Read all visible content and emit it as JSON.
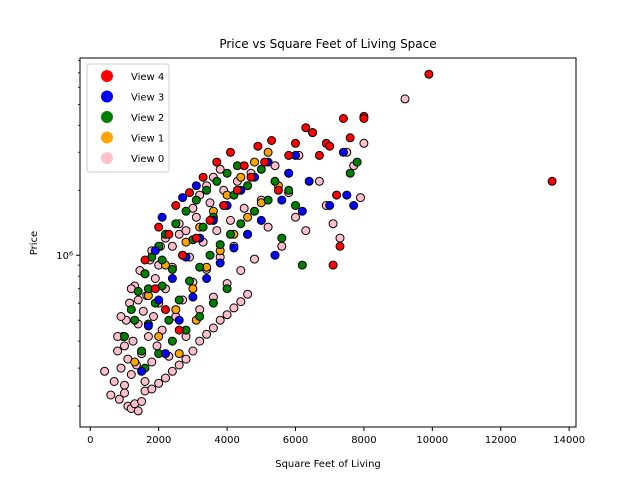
{
  "chart_data": {
    "type": "scatter",
    "title": "Price vs Square Feet of Living Space",
    "xlabel": "Square Feet of Living",
    "ylabel": "Price",
    "y_scale": "log",
    "xlim": [
      -300,
      14200
    ],
    "ylim": [
      160000,
      8200000
    ],
    "x_ticks": [
      0,
      2000,
      4000,
      6000,
      8000,
      10000,
      12000,
      14000
    ],
    "x_tick_labels": [
      "0",
      "2000",
      "4000",
      "6000",
      "8000",
      "10000",
      "12000",
      "14000"
    ],
    "y_ticks": [
      1000000
    ],
    "y_tick_labels": [
      "10⁶"
    ],
    "grid": false,
    "legend_position": "upper-left",
    "series": [
      {
        "name": "View 0",
        "color": "#ffc0cb",
        "points": [
          [
            420,
            290000
          ],
          [
            600,
            225000
          ],
          [
            700,
            260000
          ],
          [
            800,
            360000
          ],
          [
            850,
            215000
          ],
          [
            900,
            300000
          ],
          [
            950,
            420000
          ],
          [
            1000,
            250000
          ],
          [
            1050,
            500000
          ],
          [
            1100,
            330000
          ],
          [
            1150,
            600000
          ],
          [
            1200,
            280000
          ],
          [
            1250,
            400000
          ],
          [
            1300,
            720000
          ],
          [
            1350,
            310000
          ],
          [
            1400,
            480000
          ],
          [
            1450,
            850000
          ],
          [
            1500,
            350000
          ],
          [
            1550,
            550000
          ],
          [
            1600,
            260000
          ],
          [
            1650,
            650000
          ],
          [
            1700,
            420000
          ],
          [
            1750,
            950000
          ],
          [
            1800,
            320000
          ],
          [
            1850,
            520000
          ],
          [
            1900,
            780000
          ],
          [
            1950,
            380000
          ],
          [
            2000,
            600000
          ],
          [
            2050,
            1100000
          ],
          [
            2100,
            450000
          ],
          [
            2200,
            700000
          ],
          [
            2300,
            340000
          ],
          [
            2400,
            880000
          ],
          [
            2500,
            520000
          ],
          [
            2600,
            1250000
          ],
          [
            2700,
            620000
          ],
          [
            2800,
            420000
          ],
          [
            2900,
            980000
          ],
          [
            3000,
            750000
          ],
          [
            3100,
            1500000
          ],
          [
            3200,
            560000
          ],
          [
            3300,
            1150000
          ],
          [
            3400,
            860000
          ],
          [
            3500,
            1750000
          ],
          [
            3600,
            640000
          ],
          [
            3700,
            1300000
          ],
          [
            3800,
            980000
          ],
          [
            3900,
            2000000
          ],
          [
            4000,
            740000
          ],
          [
            4100,
            1450000
          ],
          [
            4200,
            1100000
          ],
          [
            4300,
            2200000
          ],
          [
            4400,
            850000
          ],
          [
            4500,
            1650000
          ],
          [
            4600,
            1250000
          ],
          [
            4700,
            2400000
          ],
          [
            4800,
            960000
          ],
          [
            5000,
            1800000
          ],
          [
            5200,
            1350000
          ],
          [
            5400,
            2600000
          ],
          [
            5600,
            1100000
          ],
          [
            5800,
            1950000
          ],
          [
            6000,
            1500000
          ],
          [
            6100,
            2900000
          ],
          [
            6300,
            1300000
          ],
          [
            6500,
            3700000
          ],
          [
            6700,
            2200000
          ],
          [
            6900,
            1700000
          ],
          [
            7100,
            1400000
          ],
          [
            7300,
            1200000
          ],
          [
            7500,
            3000000
          ],
          [
            7700,
            2600000
          ],
          [
            7900,
            1850000
          ],
          [
            8000,
            3300000
          ],
          [
            9200,
            5300000
          ],
          [
            1000,
            230000
          ],
          [
            1100,
            200000
          ],
          [
            1200,
            195000
          ],
          [
            1300,
            205000
          ],
          [
            1400,
            190000
          ],
          [
            1500,
            210000
          ],
          [
            1600,
            235000
          ],
          [
            1800,
            240000
          ],
          [
            2000,
            255000
          ],
          [
            2200,
            270000
          ],
          [
            2400,
            290000
          ],
          [
            2600,
            310000
          ],
          [
            2800,
            330000
          ],
          [
            3000,
            360000
          ],
          [
            3200,
            400000
          ],
          [
            3400,
            430000
          ],
          [
            3600,
            460000
          ],
          [
            3800,
            500000
          ],
          [
            4000,
            530000
          ],
          [
            4200,
            570000
          ],
          [
            4400,
            610000
          ],
          [
            4600,
            660000
          ],
          [
            800,
            420000
          ],
          [
            900,
            520000
          ],
          [
            1000,
            380000
          ],
          [
            1200,
            700000
          ],
          [
            1400,
            620000
          ],
          [
            1600,
            820000
          ],
          [
            1800,
            1050000
          ],
          [
            2000,
            900000
          ],
          [
            2200,
            1200000
          ],
          [
            2400,
            1100000
          ],
          [
            2600,
            1400000
          ],
          [
            2800,
            1300000
          ],
          [
            3000,
            1650000
          ],
          [
            3200,
            1900000
          ],
          [
            3400,
            2100000
          ],
          [
            3600,
            2300000
          ],
          [
            3800,
            2500000
          ]
        ]
      },
      {
        "name": "View 1",
        "color": "#ffa500",
        "points": [
          [
            1300,
            320000
          ],
          [
            1700,
            650000
          ],
          [
            2000,
            420000
          ],
          [
            2200,
            900000
          ],
          [
            2500,
            560000
          ],
          [
            2800,
            1150000
          ],
          [
            3000,
            700000
          ],
          [
            3200,
            1350000
          ],
          [
            3400,
            880000
          ],
          [
            3600,
            1600000
          ],
          [
            3800,
            1050000
          ],
          [
            4000,
            1900000
          ],
          [
            4200,
            1250000
          ],
          [
            4400,
            2300000
          ],
          [
            4600,
            1500000
          ],
          [
            4800,
            2700000
          ],
          [
            5000,
            1750000
          ],
          [
            5200,
            3000000
          ],
          [
            5500,
            2100000
          ],
          [
            5800,
            2400000
          ],
          [
            2600,
            350000
          ],
          [
            3100,
            500000
          ]
        ]
      },
      {
        "name": "View 2",
        "color": "#008000",
        "points": [
          [
            1000,
            420000
          ],
          [
            1200,
            560000
          ],
          [
            1400,
            680000
          ],
          [
            1500,
            360000
          ],
          [
            1600,
            820000
          ],
          [
            1700,
            480000
          ],
          [
            1800,
            980000
          ],
          [
            1900,
            600000
          ],
          [
            2000,
            1100000
          ],
          [
            2100,
            720000
          ],
          [
            2200,
            1250000
          ],
          [
            2300,
            500000
          ],
          [
            2400,
            860000
          ],
          [
            2500,
            1400000
          ],
          [
            2600,
            620000
          ],
          [
            2700,
            1000000
          ],
          [
            2800,
            1600000
          ],
          [
            2900,
            760000
          ],
          [
            3000,
            1180000
          ],
          [
            3100,
            1800000
          ],
          [
            3200,
            880000
          ],
          [
            3300,
            1350000
          ],
          [
            3400,
            2000000
          ],
          [
            3500,
            1000000
          ],
          [
            3600,
            1500000
          ],
          [
            3700,
            2200000
          ],
          [
            3800,
            1120000
          ],
          [
            3900,
            1700000
          ],
          [
            4000,
            2400000
          ],
          [
            4100,
            1250000
          ],
          [
            4200,
            1900000
          ],
          [
            4300,
            2600000
          ],
          [
            4400,
            1400000
          ],
          [
            4600,
            2100000
          ],
          [
            4800,
            1600000
          ],
          [
            5000,
            2500000
          ],
          [
            5200,
            1800000
          ],
          [
            5400,
            2200000
          ],
          [
            5600,
            1200000
          ],
          [
            5800,
            2000000
          ],
          [
            6000,
            1700000
          ],
          [
            6200,
            900000
          ],
          [
            7600,
            2400000
          ],
          [
            7800,
            2700000
          ],
          [
            1600,
            300000
          ],
          [
            2000,
            350000
          ],
          [
            2400,
            400000
          ],
          [
            2800,
            450000
          ],
          [
            3200,
            520000
          ],
          [
            3600,
            600000
          ],
          [
            4000,
            700000
          ],
          [
            1300,
            500000
          ],
          [
            1700,
            700000
          ],
          [
            2100,
            950000
          ]
        ]
      },
      {
        "name": "View 3",
        "color": "#0000ff",
        "points": [
          [
            1500,
            290000
          ],
          [
            1700,
            470000
          ],
          [
            2000,
            620000
          ],
          [
            2200,
            350000
          ],
          [
            2400,
            780000
          ],
          [
            2600,
            500000
          ],
          [
            2800,
            980000
          ],
          [
            3000,
            640000
          ],
          [
            3200,
            1200000
          ],
          [
            3400,
            780000
          ],
          [
            3600,
            1450000
          ],
          [
            3800,
            920000
          ],
          [
            4000,
            1700000
          ],
          [
            4200,
            1080000
          ],
          [
            4400,
            2000000
          ],
          [
            4600,
            1250000
          ],
          [
            4800,
            2300000
          ],
          [
            5000,
            1450000
          ],
          [
            5200,
            2700000
          ],
          [
            5400,
            1000000
          ],
          [
            5600,
            1800000
          ],
          [
            5800,
            2400000
          ],
          [
            6000,
            2900000
          ],
          [
            6200,
            1600000
          ],
          [
            6400,
            2200000
          ],
          [
            7000,
            1700000
          ],
          [
            7400,
            3000000
          ],
          [
            7500,
            1900000
          ],
          [
            7700,
            1700000
          ],
          [
            1900,
            1050000
          ],
          [
            2100,
            1500000
          ],
          [
            2700,
            1850000
          ],
          [
            3100,
            2100000
          ]
        ]
      },
      {
        "name": "View 4",
        "color": "#ff0000",
        "points": [
          [
            1600,
            950000
          ],
          [
            2000,
            1350000
          ],
          [
            2200,
            560000
          ],
          [
            2500,
            1700000
          ],
          [
            2700,
            1000000
          ],
          [
            2900,
            1950000
          ],
          [
            3100,
            1200000
          ],
          [
            3300,
            2300000
          ],
          [
            3500,
            1450000
          ],
          [
            3700,
            2700000
          ],
          [
            3900,
            1700000
          ],
          [
            4100,
            3000000
          ],
          [
            4300,
            2000000
          ],
          [
            4500,
            2600000
          ],
          [
            4700,
            2300000
          ],
          [
            4900,
            3200000
          ],
          [
            5100,
            2700000
          ],
          [
            5300,
            3400000
          ],
          [
            5500,
            2000000
          ],
          [
            5800,
            2900000
          ],
          [
            6000,
            3300000
          ],
          [
            6300,
            3900000
          ],
          [
            6500,
            3700000
          ],
          [
            6700,
            2900000
          ],
          [
            6900,
            3300000
          ],
          [
            7000,
            3200000
          ],
          [
            7100,
            900000
          ],
          [
            7200,
            1900000
          ],
          [
            7300,
            1100000
          ],
          [
            7400,
            4300000
          ],
          [
            7600,
            3500000
          ],
          [
            8000,
            4400000
          ],
          [
            8000,
            4300000
          ],
          [
            9900,
            6900000
          ],
          [
            13500,
            2200000
          ],
          [
            1900,
            700000
          ],
          [
            2300,
            1250000
          ],
          [
            2600,
            450000
          ]
        ]
      }
    ]
  }
}
